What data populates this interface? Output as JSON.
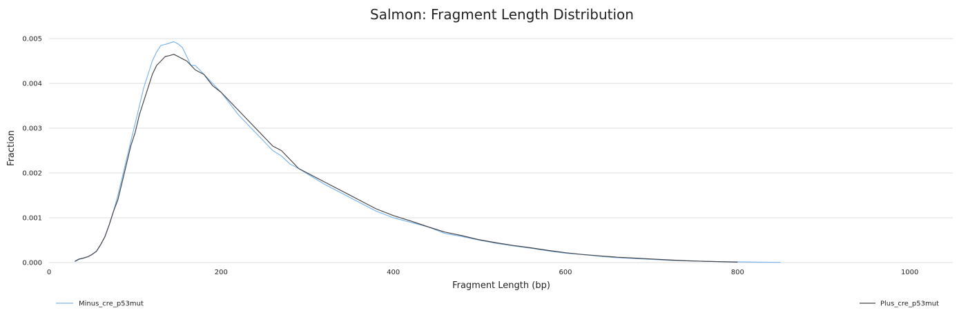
{
  "chart_data": {
    "type": "line",
    "title": "Salmon: Fragment Length Distribution",
    "xlabel": "Fragment Length (bp)",
    "ylabel": "Fraction",
    "xlim": [
      0,
      1050
    ],
    "ylim": [
      0,
      0.005
    ],
    "xticks": [
      "0",
      "200",
      "400",
      "600",
      "800",
      "1000"
    ],
    "yticks": [
      "0.000",
      "0.001",
      "0.002",
      "0.003",
      "0.004",
      "0.005"
    ],
    "grid": true,
    "legend_placement": "bottom",
    "series": [
      {
        "name": "Minus_cre_p53mut",
        "color": "#7cb5ec",
        "points": [
          [
            30,
            2e-05
          ],
          [
            35,
            7e-05
          ],
          [
            40,
            0.0001
          ],
          [
            45,
            0.00013
          ],
          [
            50,
            0.00018
          ],
          [
            55,
            0.00025
          ],
          [
            60,
            0.0004
          ],
          [
            65,
            0.00058
          ],
          [
            70,
            0.00085
          ],
          [
            75,
            0.00115
          ],
          [
            80,
            0.0015
          ],
          [
            85,
            0.0019
          ],
          [
            90,
            0.0023
          ],
          [
            95,
            0.0027
          ],
          [
            100,
            0.0031
          ],
          [
            105,
            0.0035
          ],
          [
            110,
            0.0039
          ],
          [
            115,
            0.0042
          ],
          [
            120,
            0.0045
          ],
          [
            125,
            0.0047
          ],
          [
            130,
            0.00485
          ],
          [
            135,
            0.00487
          ],
          [
            140,
            0.0049
          ],
          [
            145,
            0.00493
          ],
          [
            150,
            0.00488
          ],
          [
            155,
            0.0048
          ],
          [
            160,
            0.0046
          ],
          [
            165,
            0.0044
          ],
          [
            170,
            0.0044
          ],
          [
            175,
            0.0043
          ],
          [
            180,
            0.0042
          ],
          [
            190,
            0.004
          ],
          [
            200,
            0.0038
          ],
          [
            210,
            0.00355
          ],
          [
            220,
            0.0033
          ],
          [
            230,
            0.0031
          ],
          [
            240,
            0.0029
          ],
          [
            250,
            0.0027
          ],
          [
            260,
            0.0025
          ],
          [
            270,
            0.00238
          ],
          [
            280,
            0.0022
          ],
          [
            290,
            0.0021
          ],
          [
            300,
            0.00198
          ],
          [
            320,
            0.00175
          ],
          [
            340,
            0.00155
          ],
          [
            360,
            0.00135
          ],
          [
            380,
            0.00115
          ],
          [
            400,
            0.001
          ],
          [
            420,
            0.0009
          ],
          [
            440,
            0.0008
          ],
          [
            460,
            0.00065
          ],
          [
            480,
            0.00058
          ],
          [
            500,
            0.0005
          ],
          [
            520,
            0.00043
          ],
          [
            540,
            0.00037
          ],
          [
            560,
            0.00032
          ],
          [
            580,
            0.00026
          ],
          [
            600,
            0.00021
          ],
          [
            620,
            0.00018
          ],
          [
            640,
            0.00014
          ],
          [
            660,
            0.00011
          ],
          [
            680,
            9e-05
          ],
          [
            700,
            7e-05
          ],
          [
            720,
            5e-05
          ],
          [
            740,
            4e-05
          ],
          [
            760,
            3e-05
          ],
          [
            780,
            2e-05
          ],
          [
            800,
            1.5e-05
          ],
          [
            820,
            1e-05
          ],
          [
            850,
            5e-06
          ]
        ]
      },
      {
        "name": "Plus_cre_p53mut",
        "color": "#434348",
        "points": [
          [
            30,
            3e-05
          ],
          [
            35,
            8e-05
          ],
          [
            40,
            0.0001
          ],
          [
            45,
            0.00013
          ],
          [
            50,
            0.00018
          ],
          [
            55,
            0.00025
          ],
          [
            60,
            0.0004
          ],
          [
            65,
            0.00058
          ],
          [
            70,
            0.00085
          ],
          [
            75,
            0.00115
          ],
          [
            80,
            0.0014
          ],
          [
            85,
            0.0018
          ],
          [
            90,
            0.0022
          ],
          [
            95,
            0.0026
          ],
          [
            100,
            0.0029
          ],
          [
            105,
            0.0033
          ],
          [
            110,
            0.0036
          ],
          [
            115,
            0.0039
          ],
          [
            120,
            0.0042
          ],
          [
            125,
            0.0044
          ],
          [
            130,
            0.0045
          ],
          [
            135,
            0.0046
          ],
          [
            140,
            0.00462
          ],
          [
            145,
            0.00465
          ],
          [
            150,
            0.0046
          ],
          [
            155,
            0.00455
          ],
          [
            160,
            0.0045
          ],
          [
            165,
            0.0044
          ],
          [
            170,
            0.0043
          ],
          [
            180,
            0.0042
          ],
          [
            190,
            0.00395
          ],
          [
            200,
            0.0038
          ],
          [
            210,
            0.0036
          ],
          [
            220,
            0.0034
          ],
          [
            230,
            0.0032
          ],
          [
            240,
            0.003
          ],
          [
            250,
            0.0028
          ],
          [
            260,
            0.0026
          ],
          [
            270,
            0.0025
          ],
          [
            280,
            0.0023
          ],
          [
            290,
            0.0021
          ],
          [
            300,
            0.002
          ],
          [
            320,
            0.0018
          ],
          [
            340,
            0.0016
          ],
          [
            360,
            0.0014
          ],
          [
            380,
            0.0012
          ],
          [
            400,
            0.00105
          ],
          [
            420,
            0.00093
          ],
          [
            440,
            0.0008
          ],
          [
            460,
            0.00068
          ],
          [
            480,
            0.0006
          ],
          [
            500,
            0.00051
          ],
          [
            520,
            0.00044
          ],
          [
            540,
            0.00038
          ],
          [
            560,
            0.00033
          ],
          [
            580,
            0.00027
          ],
          [
            600,
            0.00022
          ],
          [
            620,
            0.00018
          ],
          [
            640,
            0.00015
          ],
          [
            660,
            0.00012
          ],
          [
            680,
            0.0001
          ],
          [
            700,
            8e-05
          ],
          [
            720,
            6e-05
          ],
          [
            740,
            4e-05
          ],
          [
            760,
            3e-05
          ],
          [
            780,
            2e-05
          ],
          [
            800,
            1e-05
          ]
        ]
      }
    ]
  }
}
